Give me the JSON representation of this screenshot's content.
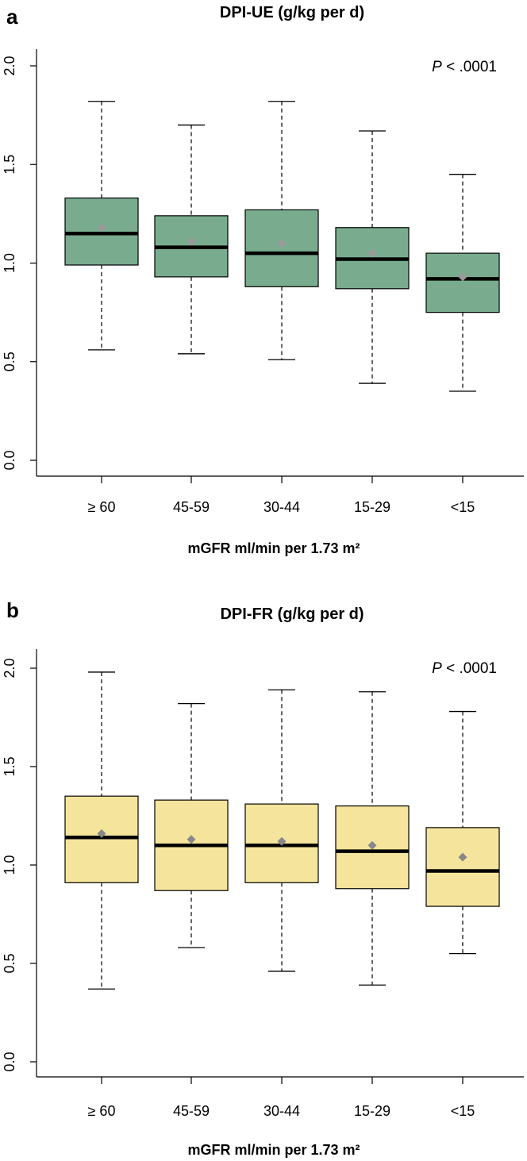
{
  "chart_data": [
    {
      "type": "box",
      "panel_letter": "a",
      "title": "DPI-UE (g/kg per d)",
      "xlabel": "mGFR ml/min per 1.73 m²",
      "ylabel": "",
      "ylim": [
        0.0,
        2.0
      ],
      "yticks": [
        "0.0",
        "0.5",
        "1.0",
        "1.5",
        "2.0"
      ],
      "annotation": {
        "p_symbol": "P",
        "p_text": " < .0001"
      },
      "box_color": "#79ac8e",
      "mean_marker_color": "#9a9a9a",
      "categories": [
        "≥ 60",
        "45-59",
        "30-44",
        "15-29",
        "<15"
      ],
      "boxes": [
        {
          "whisker_low": 0.56,
          "q1": 0.99,
          "median": 1.15,
          "q3": 1.33,
          "whisker_high": 1.82,
          "mean": 1.18
        },
        {
          "whisker_low": 0.54,
          "q1": 0.93,
          "median": 1.08,
          "q3": 1.24,
          "whisker_high": 1.7,
          "mean": 1.11
        },
        {
          "whisker_low": 0.51,
          "q1": 0.88,
          "median": 1.05,
          "q3": 1.27,
          "whisker_high": 1.82,
          "mean": 1.1
        },
        {
          "whisker_low": 0.39,
          "q1": 0.87,
          "median": 1.02,
          "q3": 1.18,
          "whisker_high": 1.67,
          "mean": 1.05
        },
        {
          "whisker_low": 0.35,
          "q1": 0.75,
          "median": 0.92,
          "q3": 1.05,
          "whisker_high": 1.45,
          "mean": 0.93
        }
      ]
    },
    {
      "type": "box",
      "panel_letter": "b",
      "title": "DPI-FR (g/kg per d)",
      "xlabel": "mGFR ml/min per 1.73 m²",
      "ylabel": "",
      "ylim": [
        0.0,
        2.0
      ],
      "yticks": [
        "0.0",
        "0.5",
        "1.0",
        "1.5",
        "2.0"
      ],
      "annotation": {
        "p_symbol": "P",
        "p_text": " < .0001"
      },
      "box_color": "#f5e59c",
      "mean_marker_color": "#888888",
      "categories": [
        "≥ 60",
        "45-59",
        "30-44",
        "15-29",
        "<15"
      ],
      "boxes": [
        {
          "whisker_low": 0.37,
          "q1": 0.91,
          "median": 1.14,
          "q3": 1.35,
          "whisker_high": 1.98,
          "mean": 1.16
        },
        {
          "whisker_low": 0.58,
          "q1": 0.87,
          "median": 1.1,
          "q3": 1.33,
          "whisker_high": 1.82,
          "mean": 1.13
        },
        {
          "whisker_low": 0.46,
          "q1": 0.91,
          "median": 1.1,
          "q3": 1.31,
          "whisker_high": 1.89,
          "mean": 1.12
        },
        {
          "whisker_low": 0.39,
          "q1": 0.88,
          "median": 1.07,
          "q3": 1.3,
          "whisker_high": 1.88,
          "mean": 1.1
        },
        {
          "whisker_low": 0.55,
          "q1": 0.79,
          "median": 0.97,
          "q3": 1.19,
          "whisker_high": 1.78,
          "mean": 1.04
        }
      ]
    }
  ]
}
